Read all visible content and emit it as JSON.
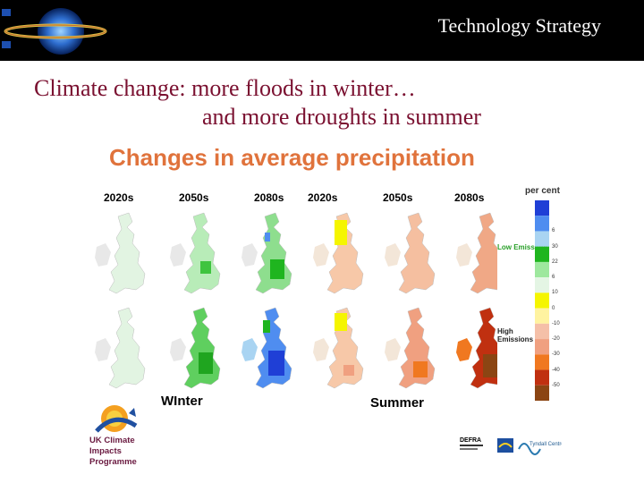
{
  "slide": {
    "header_title": "Technology Strategy",
    "heading_line1": "Climate change: more floods in winter…",
    "heading_line2": "and more droughts in summer",
    "chart_title": "Changes in average precipitation"
  },
  "maps": {
    "column_headers": [
      "2020s",
      "2050s",
      "2080s",
      "2020s",
      "2050s",
      "2080s"
    ],
    "scenario_low": "Low Emissions",
    "scenario_high": "High Emissions",
    "season_winter": "WInter",
    "season_summer": "Summer"
  },
  "legend": {
    "title": "per cent",
    "labels": [
      "",
      "6",
      "30",
      "22",
      "6",
      "10",
      "0",
      "-10",
      "-20",
      "-30",
      "-40",
      "-50"
    ],
    "colors": [
      "#1f3fd6",
      "#4f8df0",
      "#a9d4f2",
      "#1fb51f",
      "#9ee89e",
      "#e4f5e4",
      "#f5f500",
      "#fff3a0",
      "#f5c0a8",
      "#f0a080",
      "#f07820",
      "#c03010",
      "#8b4513"
    ]
  },
  "logos": {
    "ukcip": "UK Climate Impacts Programme",
    "defra": "DEFRA",
    "tyndall": "Tyndall Centre"
  }
}
